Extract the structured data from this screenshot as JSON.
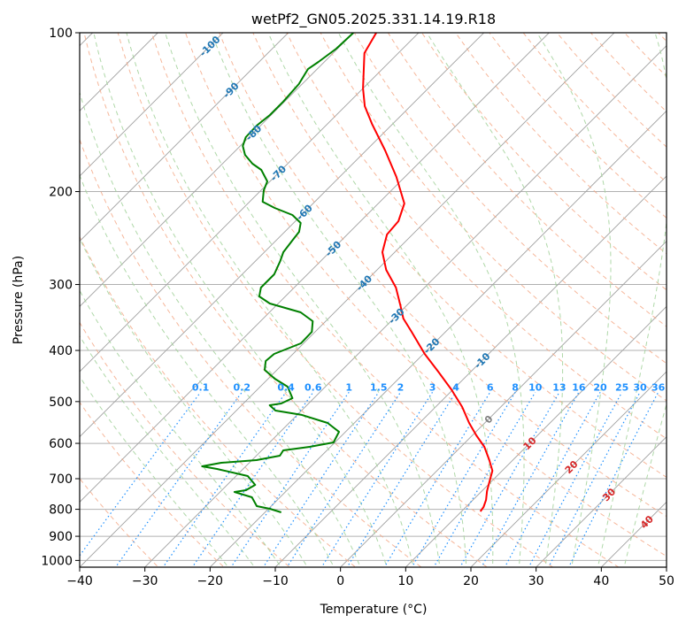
{
  "chart_data": {
    "type": "line",
    "subtype": "skew-t log-p diagram",
    "title": "wetPf2_GN05.2025.331.14.19.R18",
    "xlabel": "Temperature (°C)",
    "ylabel": "Pressure (hPa)",
    "xlim": [
      -40,
      50
    ],
    "ylim_hPa": [
      1030,
      100
    ],
    "x_ticks": [
      -40,
      -30,
      -20,
      -10,
      0,
      10,
      20,
      30,
      40,
      50
    ],
    "y_ticks": [
      100,
      200,
      300,
      400,
      500,
      600,
      700,
      800,
      900,
      1000
    ],
    "grid": true,
    "isotherm_labels": [
      -100,
      -90,
      -80,
      -70,
      -60,
      -50,
      -40,
      -30,
      -20,
      -10,
      0,
      10,
      20,
      30,
      40
    ],
    "mixing_ratio_labels": [
      "0.1",
      "0.2",
      "0.4",
      "0.6",
      "1",
      "1.5",
      "2",
      "3",
      "4",
      "6",
      "8",
      "10",
      "13",
      "16",
      "20",
      "25",
      "30",
      "36"
    ],
    "colors": {
      "temperature": "#ff0000",
      "dewpoint": "#008000",
      "isotherm": "#a0a0a0",
      "dry_adiabat": "#f4a582",
      "moist_adiabat": "#a6d49f",
      "mixing_ratio": "#1e90ff",
      "label_cold": "#1f77b4",
      "label_zero": "#808080",
      "label_warm": "#d62728"
    },
    "series": [
      {
        "name": "Temperature",
        "pressure": [
          100,
          109.3,
          127.5,
          137.8,
          148.8,
          167.1,
          187.6,
          210.7,
          227.6,
          241.2,
          260.5,
          281.4,
          304.0,
          328.4,
          348.0,
          368.8,
          406.1,
          438.8,
          474.0,
          512.1,
          548.9,
          579.4,
          609.2,
          645.5,
          676.2,
          711.0,
          739.0,
          768.0,
          792.0,
          807.5
        ],
        "values": [
          -76.5,
          -75.2,
          -70.0,
          -67.0,
          -63.2,
          -57.1,
          -51.3,
          -46.0,
          -44.2,
          -43.9,
          -41.9,
          -38.6,
          -34.4,
          -31.0,
          -28.5,
          -25.2,
          -19.8,
          -15.0,
          -10.3,
          -5.9,
          -2.4,
          0.6,
          3.6,
          6.4,
          8.5,
          9.8,
          10.8,
          12.0,
          12.7,
          12.9
        ]
      },
      {
        "name": "Dewpoint",
        "pressure": [
          100,
          107.2,
          113.6,
          117.2,
          125.1,
          135.1,
          143.2,
          150.0,
          157.7,
          163.9,
          170.4,
          177.1,
          181.9,
          191.3,
          198.8,
          209.1,
          214.8,
          221.5,
          229.4,
          238.4,
          247.8,
          260.5,
          270.8,
          286.9,
          304.0,
          316.0,
          325.9,
          338.8,
          352.1,
          368.8,
          387.8,
          406.1,
          418.9,
          435.4,
          452.5,
          468.5,
          492.6,
          504.2,
          508.1,
          519.9,
          530.0,
          548.9,
          570.5,
          597.6,
          609.2,
          618.7,
          633.2,
          645.5,
          653.0,
          663.2,
          670.9,
          692.0,
          719.3,
          736.1,
          741.8,
          759.2,
          789.1,
          798.3,
          810.7
        ],
        "values": [
          -80.0,
          -80.2,
          -80.9,
          -81.4,
          -80.5,
          -80.2,
          -80.2,
          -80.6,
          -80.5,
          -79.6,
          -77.9,
          -75.4,
          -73.1,
          -70.4,
          -69.6,
          -68.0,
          -65.2,
          -61.4,
          -58.9,
          -57.8,
          -57.5,
          -57.1,
          -56.2,
          -55.1,
          -55.1,
          -54.0,
          -51.3,
          -45.2,
          -42.0,
          -40.5,
          -40.4,
          -42.9,
          -43.1,
          -41.9,
          -39.0,
          -35.8,
          -33.3,
          -34.2,
          -35.7,
          -34.0,
          -29.3,
          -24.1,
          -21.0,
          -20.2,
          -23.2,
          -26.7,
          -26.4,
          -29.3,
          -34.3,
          -36.7,
          -34.0,
          -28.2,
          -25.7,
          -26.3,
          -27.8,
          -24.3,
          -22.2,
          -19.8,
          -17.5
        ]
      }
    ]
  }
}
